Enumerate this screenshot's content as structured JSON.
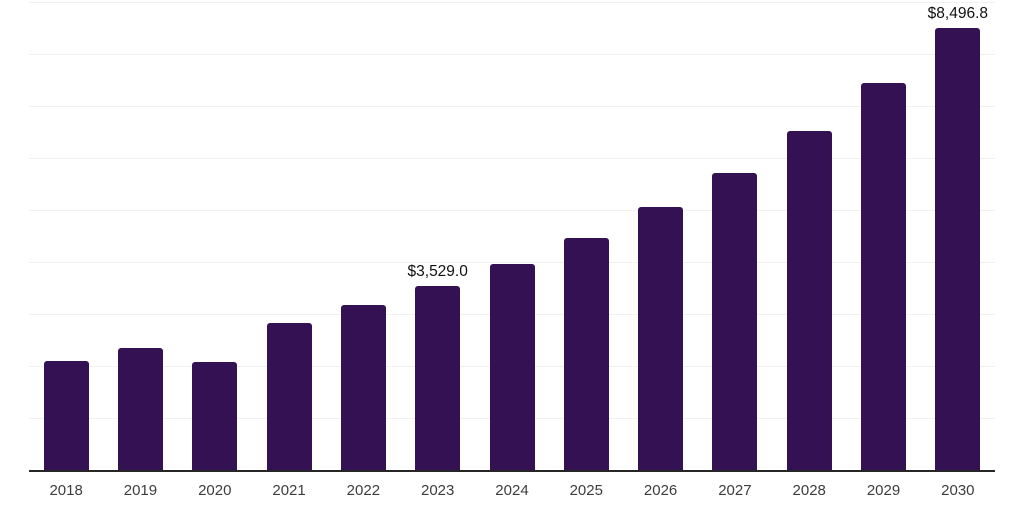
{
  "chart_data": {
    "type": "bar",
    "categories": [
      "2018",
      "2019",
      "2020",
      "2021",
      "2022",
      "2023",
      "2024",
      "2025",
      "2026",
      "2027",
      "2028",
      "2029",
      "2030"
    ],
    "values": [
      2105,
      2355,
      2085,
      2835,
      3180,
      3529.0,
      3970,
      4470,
      5050,
      5720,
      6510,
      7450,
      8496.8
    ],
    "labeled_points": [
      {
        "category": "2023",
        "label": "$3,529.0"
      },
      {
        "category": "2030",
        "label": "$8,496.8"
      }
    ],
    "title": "",
    "xlabel": "",
    "ylabel": "",
    "ylim": [
      0,
      9000
    ],
    "grid_step": 1000,
    "grid": true,
    "legend_position": "none",
    "colors": {
      "bar": "#341152",
      "axis_line": "#262626",
      "gridline": "#f1f1f1",
      "value_label": "#111111",
      "tick_label": "#3d3d3d",
      "background": "#ffffff"
    }
  }
}
